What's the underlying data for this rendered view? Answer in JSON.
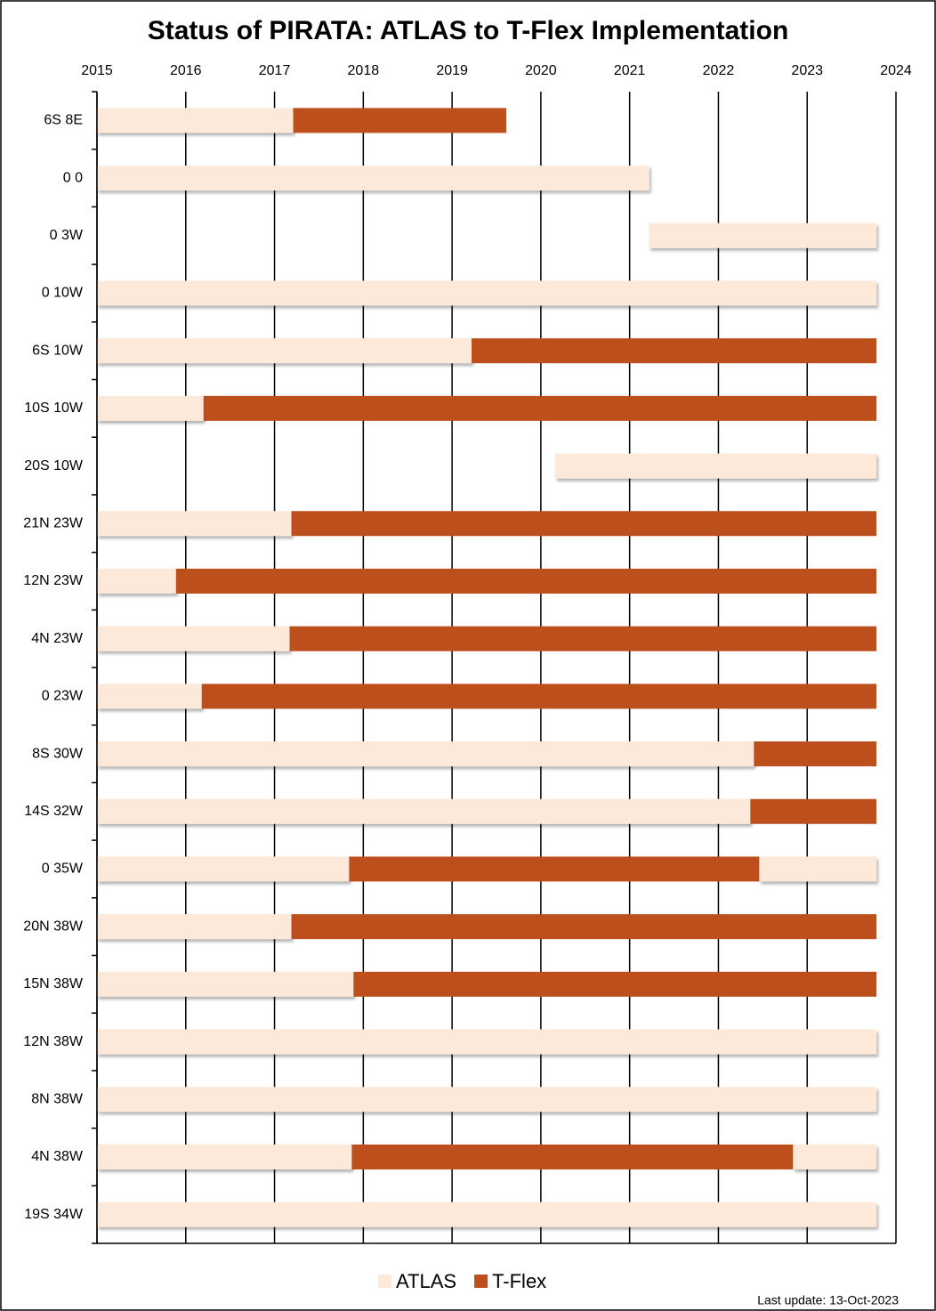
{
  "chart_data": {
    "type": "gantt",
    "title": "Status of PIRATA: ATLAS to T-Flex Implementation",
    "categories": [
      "6S 8E",
      "0 0",
      "0 3W",
      "0 10W",
      "6S 10W",
      "10S 10W",
      "20S 10W",
      "21N 23W",
      "12N 23W",
      "4N 23W",
      "0 23W",
      "8S 30W",
      "14S 32W",
      "0 35W",
      "20N 38W",
      "15N 38W",
      "12N 38W",
      "8N 38W",
      "4N 38W",
      "19S 34W"
    ],
    "series": [
      {
        "name": "ATLAS",
        "color": "#fde9d9",
        "segments": [
          [
            [
              2015,
              2017.21
            ]
          ],
          [
            [
              2015,
              2021.22
            ]
          ],
          [
            [
              2021.22,
              2023.78
            ]
          ],
          [
            [
              2015,
              2023.78
            ]
          ],
          [
            [
              2015,
              2019.22
            ]
          ],
          [
            [
              2015,
              2016.2
            ]
          ],
          [
            [
              2020.16,
              2023.78
            ]
          ],
          [
            [
              2015,
              2017.19
            ]
          ],
          [
            [
              2015,
              2015.89
            ]
          ],
          [
            [
              2015,
              2017.17
            ]
          ],
          [
            [
              2015,
              2016.18
            ]
          ],
          [
            [
              2015,
              2022.4
            ]
          ],
          [
            [
              2015,
              2022.36
            ]
          ],
          [
            [
              2015,
              2017.84
            ],
            [
              2022.46,
              2023.78
            ]
          ],
          [
            [
              2015,
              2017.19
            ]
          ],
          [
            [
              2015,
              2017.89
            ]
          ],
          [
            [
              2015,
              2023.78
            ]
          ],
          [
            [
              2015,
              2023.78
            ]
          ],
          [
            [
              2015,
              2017.87
            ],
            [
              2022.84,
              2023.78
            ]
          ],
          [
            [
              2015,
              2023.78
            ]
          ]
        ]
      },
      {
        "name": "T-Flex",
        "color": "#bc4f1b",
        "segments": [
          [
            [
              2017.21,
              2019.61
            ]
          ],
          [],
          [],
          [],
          [
            [
              2019.22,
              2023.78
            ]
          ],
          [
            [
              2016.2,
              2023.78
            ]
          ],
          [],
          [
            [
              2017.19,
              2023.78
            ]
          ],
          [
            [
              2015.89,
              2023.78
            ]
          ],
          [
            [
              2017.17,
              2023.78
            ]
          ],
          [
            [
              2016.18,
              2023.78
            ]
          ],
          [
            [
              2022.4,
              2023.78
            ]
          ],
          [
            [
              2022.36,
              2023.78
            ]
          ],
          [
            [
              2017.84,
              2022.46
            ]
          ],
          [
            [
              2017.19,
              2023.78
            ]
          ],
          [
            [
              2017.89,
              2023.78
            ]
          ],
          [],
          [],
          [
            [
              2017.87,
              2022.84
            ]
          ],
          []
        ]
      }
    ],
    "xlim": [
      2015,
      2024
    ],
    "xticks": [
      2015,
      2016,
      2017,
      2018,
      2019,
      2020,
      2021,
      2022,
      2023,
      2024
    ],
    "grid": true,
    "legend": "bottom",
    "footnote": "Last update: 13-Oct-2023"
  }
}
